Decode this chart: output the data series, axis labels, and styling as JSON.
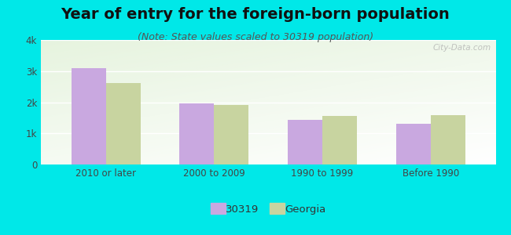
{
  "title": "Year of entry for the foreign-born population",
  "subtitle": "(Note: State values scaled to 30319 population)",
  "categories": [
    "2010 or later",
    "2000 to 2009",
    "1990 to 1999",
    "Before 1990"
  ],
  "series_30319": [
    3100,
    1950,
    1430,
    1300
  ],
  "series_georgia": [
    2620,
    1900,
    1570,
    1590
  ],
  "color_30319": "#c9a8e0",
  "color_georgia": "#c8d4a0",
  "ylim": [
    0,
    4000
  ],
  "yticks": [
    0,
    1000,
    2000,
    3000,
    4000
  ],
  "ytick_labels": [
    "0",
    "1k",
    "2k",
    "3k",
    "4k"
  ],
  "background_outer": "#00e8e8",
  "legend_label_30319": "30319",
  "legend_label_georgia": "Georgia",
  "bar_width": 0.32,
  "title_fontsize": 14,
  "subtitle_fontsize": 9,
  "watermark": "City-Data.com"
}
